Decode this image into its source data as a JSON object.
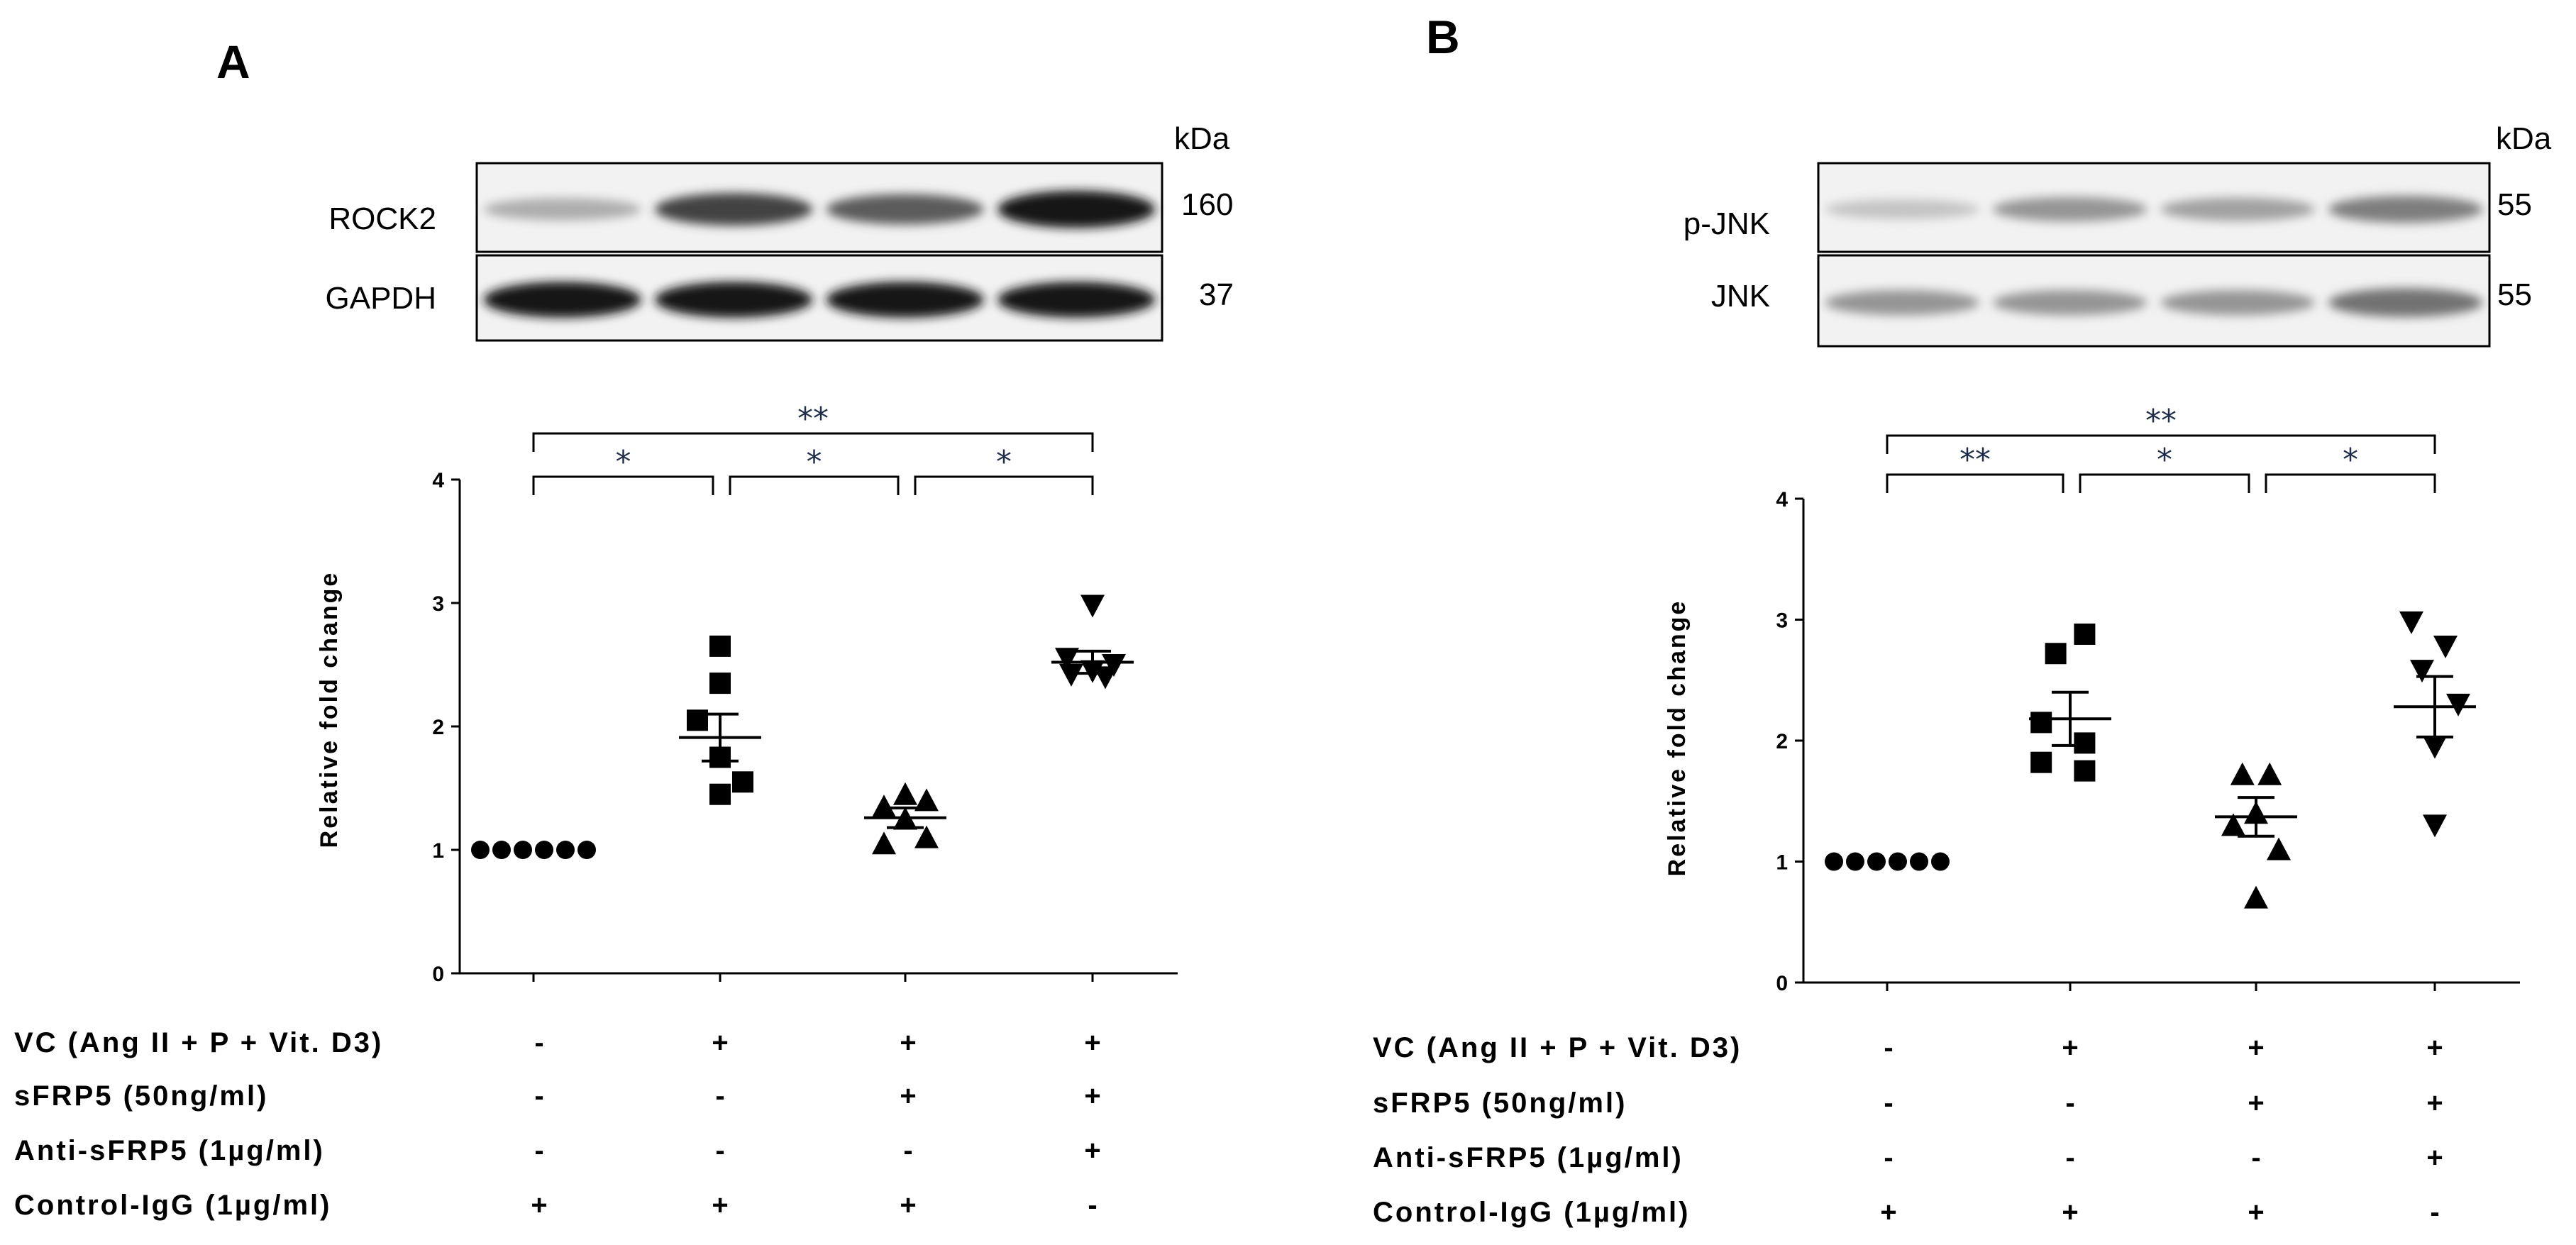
{
  "panels": [
    {
      "letter": "A",
      "blot": {
        "kda_label": "kDa",
        "rows": [
          {
            "protein": "ROCK2",
            "kda": "160",
            "intensity": [
              0.35,
              0.8,
              0.7,
              1.0
            ]
          },
          {
            "protein": "GAPDH",
            "kda": "37",
            "intensity": [
              1.0,
              1.0,
              1.0,
              1.0
            ]
          }
        ]
      },
      "chart_data": {
        "type": "scatter",
        "ylabel": "Relative fold change",
        "ylim": [
          0,
          4
        ],
        "yticks": [
          "0",
          "1",
          "2",
          "3",
          "4"
        ],
        "groups": [
          {
            "marker": "circle",
            "values": [
              1.0,
              1.0,
              1.0,
              1.0,
              1.0,
              1.0
            ],
            "mean": 1.0,
            "sem": 0.0
          },
          {
            "marker": "square",
            "values": [
              2.65,
              2.35,
              2.05,
              1.75,
              1.55,
              1.45
            ],
            "mean": 1.91,
            "sem": 0.19
          },
          {
            "marker": "triangle-up",
            "values": [
              1.45,
              1.4,
              1.35,
              1.25,
              1.1,
              1.05
            ],
            "mean": 1.26,
            "sem": 0.08
          },
          {
            "marker": "triangle-down",
            "values": [
              2.98,
              2.55,
              2.5,
              2.45,
              2.42,
              2.4
            ],
            "mean": 2.52,
            "sem": 0.09
          }
        ],
        "significance": [
          {
            "from": 0,
            "to": 1,
            "label": "*",
            "level": 0
          },
          {
            "from": 1,
            "to": 2,
            "label": "*",
            "level": 0
          },
          {
            "from": 2,
            "to": 3,
            "label": "*",
            "level": 0
          },
          {
            "from": 0,
            "to": 3,
            "label": "**",
            "level": 1
          }
        ]
      },
      "conditions": [
        {
          "label": "VC (Ang II + P + Vit. D3)",
          "values": [
            "-",
            "+",
            "+",
            "+"
          ]
        },
        {
          "label": "sFRP5 (50ng/ml)",
          "values": [
            "-",
            "-",
            "+",
            "+"
          ]
        },
        {
          "label": "Anti-sFRP5 (1µg/ml)",
          "values": [
            "-",
            "-",
            "-",
            "+"
          ]
        },
        {
          "label": "Control-IgG (1µg/ml)",
          "values": [
            "+",
            "+",
            "+",
            "-"
          ]
        }
      ]
    },
    {
      "letter": "B",
      "blot": {
        "kda_label": "kDa",
        "rows": [
          {
            "protein": "p-JNK",
            "kda": "55",
            "intensity": [
              0.25,
              0.45,
              0.4,
              0.55
            ]
          },
          {
            "protein": "JNK",
            "kda": "55",
            "intensity": [
              0.45,
              0.45,
              0.45,
              0.6
            ]
          }
        ]
      },
      "chart_data": {
        "type": "scatter",
        "ylabel": "Relative fold change",
        "ylim": [
          0,
          4
        ],
        "yticks": [
          "0",
          "1",
          "2",
          "3",
          "4"
        ],
        "groups": [
          {
            "marker": "circle",
            "values": [
              1.0,
              1.0,
              1.0,
              1.0,
              1.0,
              1.0
            ],
            "mean": 1.0,
            "sem": 0.0
          },
          {
            "marker": "square",
            "values": [
              2.88,
              2.72,
              2.15,
              1.98,
              1.82,
              1.75
            ],
            "mean": 2.18,
            "sem": 0.22
          },
          {
            "marker": "triangle-up",
            "values": [
              1.72,
              1.72,
              1.4,
              1.3,
              1.1,
              0.7
            ],
            "mean": 1.37,
            "sem": 0.16
          },
          {
            "marker": "triangle-down",
            "values": [
              2.98,
              2.78,
              2.58,
              2.3,
              1.95,
              1.3
            ],
            "mean": 2.28,
            "sem": 0.25
          }
        ],
        "significance": [
          {
            "from": 0,
            "to": 1,
            "label": "**",
            "level": 0
          },
          {
            "from": 1,
            "to": 2,
            "label": "*",
            "level": 0
          },
          {
            "from": 2,
            "to": 3,
            "label": "*",
            "level": 0
          },
          {
            "from": 0,
            "to": 3,
            "label": "**",
            "level": 1
          }
        ]
      },
      "conditions": [
        {
          "label": "VC (Ang II + P + Vit. D3)",
          "values": [
            "-",
            "+",
            "+",
            "+"
          ]
        },
        {
          "label": "sFRP5 (50ng/ml)",
          "values": [
            "-",
            "-",
            "+",
            "+"
          ]
        },
        {
          "label": "Anti-sFRP5 (1µg/ml)",
          "values": [
            "-",
            "-",
            "-",
            "+"
          ]
        },
        {
          "label": "Control-IgG (1µg/ml)",
          "values": [
            "+",
            "+",
            "+",
            "-"
          ]
        }
      ]
    }
  ]
}
